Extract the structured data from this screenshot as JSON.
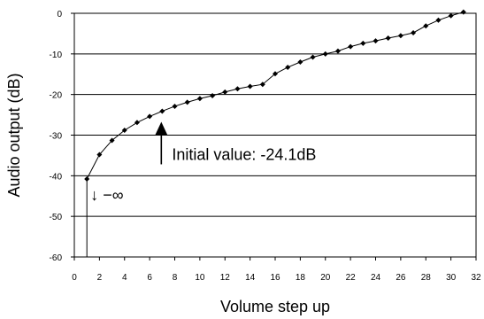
{
  "chart_data": {
    "type": "line",
    "xlabel": "Volume step up",
    "ylabel": "Audio output (dB)",
    "xlim": [
      0,
      32
    ],
    "ylim": [
      -60,
      0
    ],
    "x_ticks": [
      "0",
      "2",
      "4",
      "6",
      "8",
      "10",
      "12",
      "14",
      "16",
      "18",
      "20",
      "22",
      "24",
      "26",
      "28",
      "30",
      "32"
    ],
    "y_ticks": [
      "0",
      "-10",
      "-20",
      "-30",
      "-40",
      "-50",
      "-60"
    ],
    "grid": "horizontal",
    "series": [
      {
        "x": [
          1,
          2,
          3,
          4,
          5,
          6,
          7,
          8,
          9,
          10,
          11,
          12,
          13,
          14,
          15,
          16,
          17,
          18,
          19,
          20,
          21,
          22,
          23,
          24,
          25,
          26,
          27,
          28,
          29,
          30,
          31
        ],
        "y": [
          -40.8,
          -34.8,
          -31.3,
          -28.8,
          -26.9,
          -25.4,
          -24.1,
          -22.9,
          -21.9,
          -21.0,
          -20.3,
          -19.4,
          -18.6,
          -18.0,
          -17.5,
          -14.9,
          -13.3,
          -12.0,
          -10.8,
          -10.0,
          -9.3,
          -8.2,
          -7.4,
          -6.8,
          -6.1,
          -5.5,
          -4.8,
          -3.1,
          -1.7,
          -0.6,
          0.3
        ],
        "start_drop_to": -60
      }
    ],
    "annotations": {
      "initial_value_label": "Initial value: -24.1dB",
      "initial_value_point": {
        "x": 7,
        "y": -24.1
      },
      "minus_infinity_label": "↓ −∞"
    }
  }
}
